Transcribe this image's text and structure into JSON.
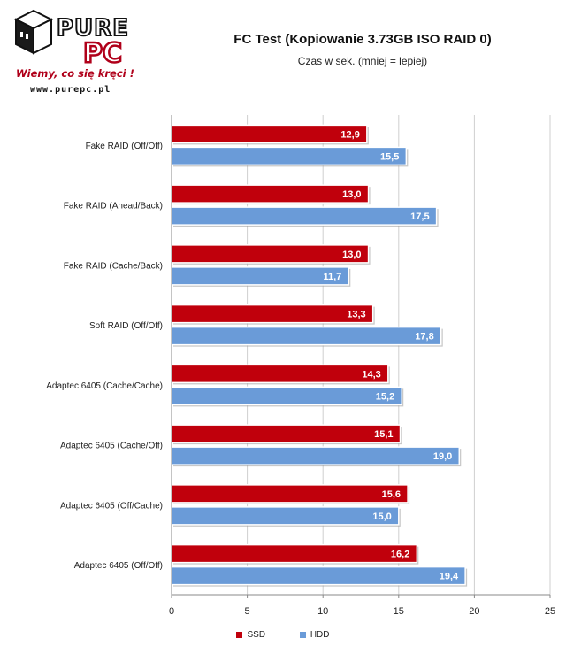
{
  "logo": {
    "brand_top": "PURE",
    "brand_bottom": "PC",
    "tagline": "Wiemy, co się kręci !",
    "url": "www.purepc.pl",
    "icon": "purepc-cube-logo"
  },
  "header": {
    "title": "FC Test (Kopiowanie 3.73GB ISO RAID 0)",
    "subtitle": "Czas w sek.  (mniej = lepiej)"
  },
  "colors": {
    "ssd": "#c0000c",
    "hdd": "#6a9bd8"
  },
  "chart_data": {
    "type": "bar",
    "orientation": "horizontal",
    "title": "FC Test (Kopiowanie 3.73GB ISO RAID 0)",
    "subtitle": "Czas w sek.  (mniej = lepiej)",
    "categories": [
      "Fake RAID (Off/Off)",
      "Fake RAID (Ahead/Back)",
      "Fake RAID (Cache/Back)",
      "Soft RAID (Off/Off)",
      "Adaptec 6405  (Cache/Cache)",
      "Adaptec 6405  (Cache/Off)",
      "Adaptec 6405  (Off/Cache)",
      "Adaptec 6405  (Off/Off)"
    ],
    "series": [
      {
        "name": "SSD",
        "color": "#c0000c",
        "values": [
          12.9,
          13.0,
          13.0,
          13.3,
          14.3,
          15.1,
          15.6,
          16.2
        ],
        "labels": [
          "12,9",
          "13,0",
          "13,0",
          "13,3",
          "14,3",
          "15,1",
          "15,6",
          "16,2"
        ]
      },
      {
        "name": "HDD",
        "color": "#6a9bd8",
        "values": [
          15.5,
          17.5,
          11.7,
          17.8,
          15.2,
          19.0,
          15.0,
          19.4
        ],
        "labels": [
          "15,5",
          "17,5",
          "11,7",
          "17,8",
          "15,2",
          "19,0",
          "15,0",
          "19,4"
        ]
      }
    ],
    "xlim": [
      0,
      25
    ],
    "xticks": [
      0,
      5,
      10,
      15,
      20,
      25
    ],
    "grid": true,
    "legend_position": "bottom"
  }
}
